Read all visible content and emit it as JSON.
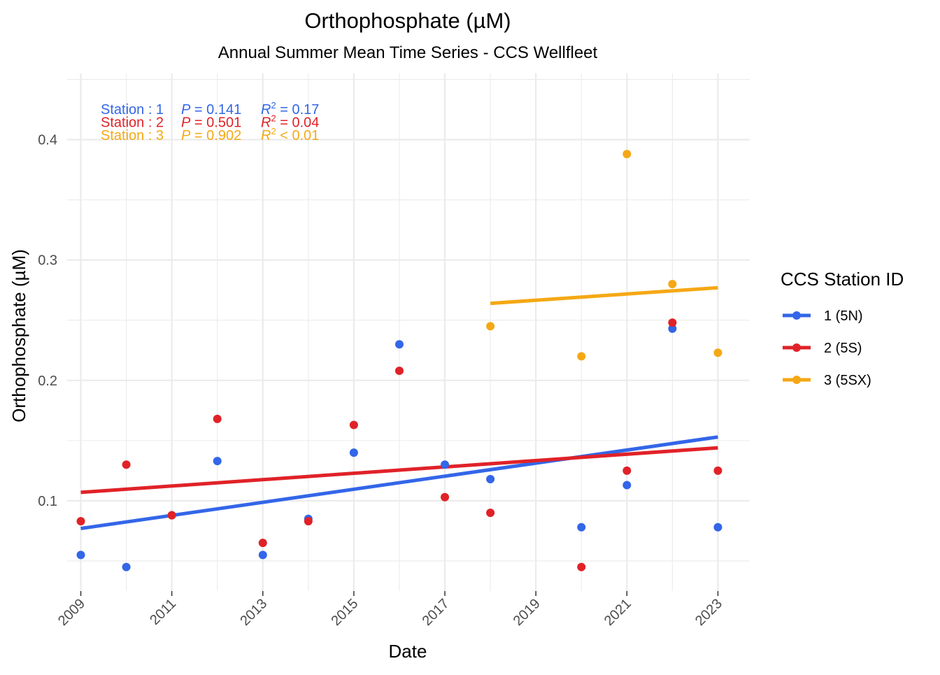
{
  "chart_data": {
    "type": "scatter",
    "title": "Orthophosphate (µM)",
    "subtitle": "Annual Summer Mean Time Series - CCS Wellfleet",
    "xlabel": "Date",
    "ylabel": "Orthophosphate (µM)",
    "xlim": [
      2008.7,
      2023.7
    ],
    "ylim": [
      0.025,
      0.455
    ],
    "x_ticks": [
      2009,
      2011,
      2013,
      2015,
      2017,
      2019,
      2021,
      2023
    ],
    "x_tick_labels": [
      "2009",
      "2011",
      "2013",
      "2015",
      "2017",
      "2019",
      "2021",
      "2023"
    ],
    "y_ticks": [
      0.1,
      0.2,
      0.3,
      0.4
    ],
    "y_tick_labels": [
      "0.1",
      "0.2",
      "0.3",
      "0.4"
    ],
    "grid": true,
    "legend": {
      "title": "CCS Station ID",
      "placement": "right",
      "entries": [
        "1 (5N)",
        "2 (5S)",
        "3 (5SX)"
      ]
    },
    "series": [
      {
        "name": "1 (5N)",
        "color": "#3366e8",
        "points": [
          [
            2009,
            0.055
          ],
          [
            2010,
            0.045
          ],
          [
            2011,
            0.088
          ],
          [
            2012,
            0.133
          ],
          [
            2013,
            0.055
          ],
          [
            2014,
            0.085
          ],
          [
            2015,
            0.14
          ],
          [
            2016,
            0.23
          ],
          [
            2017,
            0.13
          ],
          [
            2018,
            0.118
          ],
          [
            2020,
            0.078
          ],
          [
            2021,
            0.113
          ],
          [
            2022,
            0.243
          ],
          [
            2023,
            0.078
          ]
        ],
        "trend": [
          [
            2009,
            0.077
          ],
          [
            2023,
            0.153
          ]
        ]
      },
      {
        "name": "2 (5S)",
        "color": "#e02228",
        "points": [
          [
            2009,
            0.083
          ],
          [
            2010,
            0.13
          ],
          [
            2011,
            0.088
          ],
          [
            2012,
            0.168
          ],
          [
            2013,
            0.065
          ],
          [
            2014,
            0.083
          ],
          [
            2015,
            0.163
          ],
          [
            2016,
            0.208
          ],
          [
            2017,
            0.103
          ],
          [
            2018,
            0.09
          ],
          [
            2020,
            0.045
          ],
          [
            2021,
            0.125
          ],
          [
            2022,
            0.248
          ],
          [
            2023,
            0.125
          ]
        ],
        "trend": [
          [
            2009,
            0.107
          ],
          [
            2023,
            0.144
          ]
        ]
      },
      {
        "name": "3 (5SX)",
        "color": "#f5a815",
        "points": [
          [
            2018,
            0.245
          ],
          [
            2020,
            0.22
          ],
          [
            2021,
            0.388
          ],
          [
            2022,
            0.28
          ],
          [
            2023,
            0.223
          ]
        ],
        "trend": [
          [
            2018,
            0.264
          ],
          [
            2023,
            0.277
          ]
        ]
      }
    ],
    "annotations": [
      {
        "station": "Station : 1",
        "p_label": "P",
        "p_value": "= 0.141",
        "r2_label": "R",
        "r2_sup": "2",
        "r2_value": "= 0.17",
        "color": "#3366e8"
      },
      {
        "station": "Station : 2",
        "p_label": "P",
        "p_value": "= 0.501",
        "r2_label": "R",
        "r2_sup": "2",
        "r2_value": "= 0.04",
        "color": "#e02228"
      },
      {
        "station": "Station : 3",
        "p_label": "P",
        "p_value": "= 0.902",
        "r2_label": "R",
        "r2_sup": "2",
        "r2_value": "< 0.01",
        "color": "#f5a815"
      }
    ]
  }
}
